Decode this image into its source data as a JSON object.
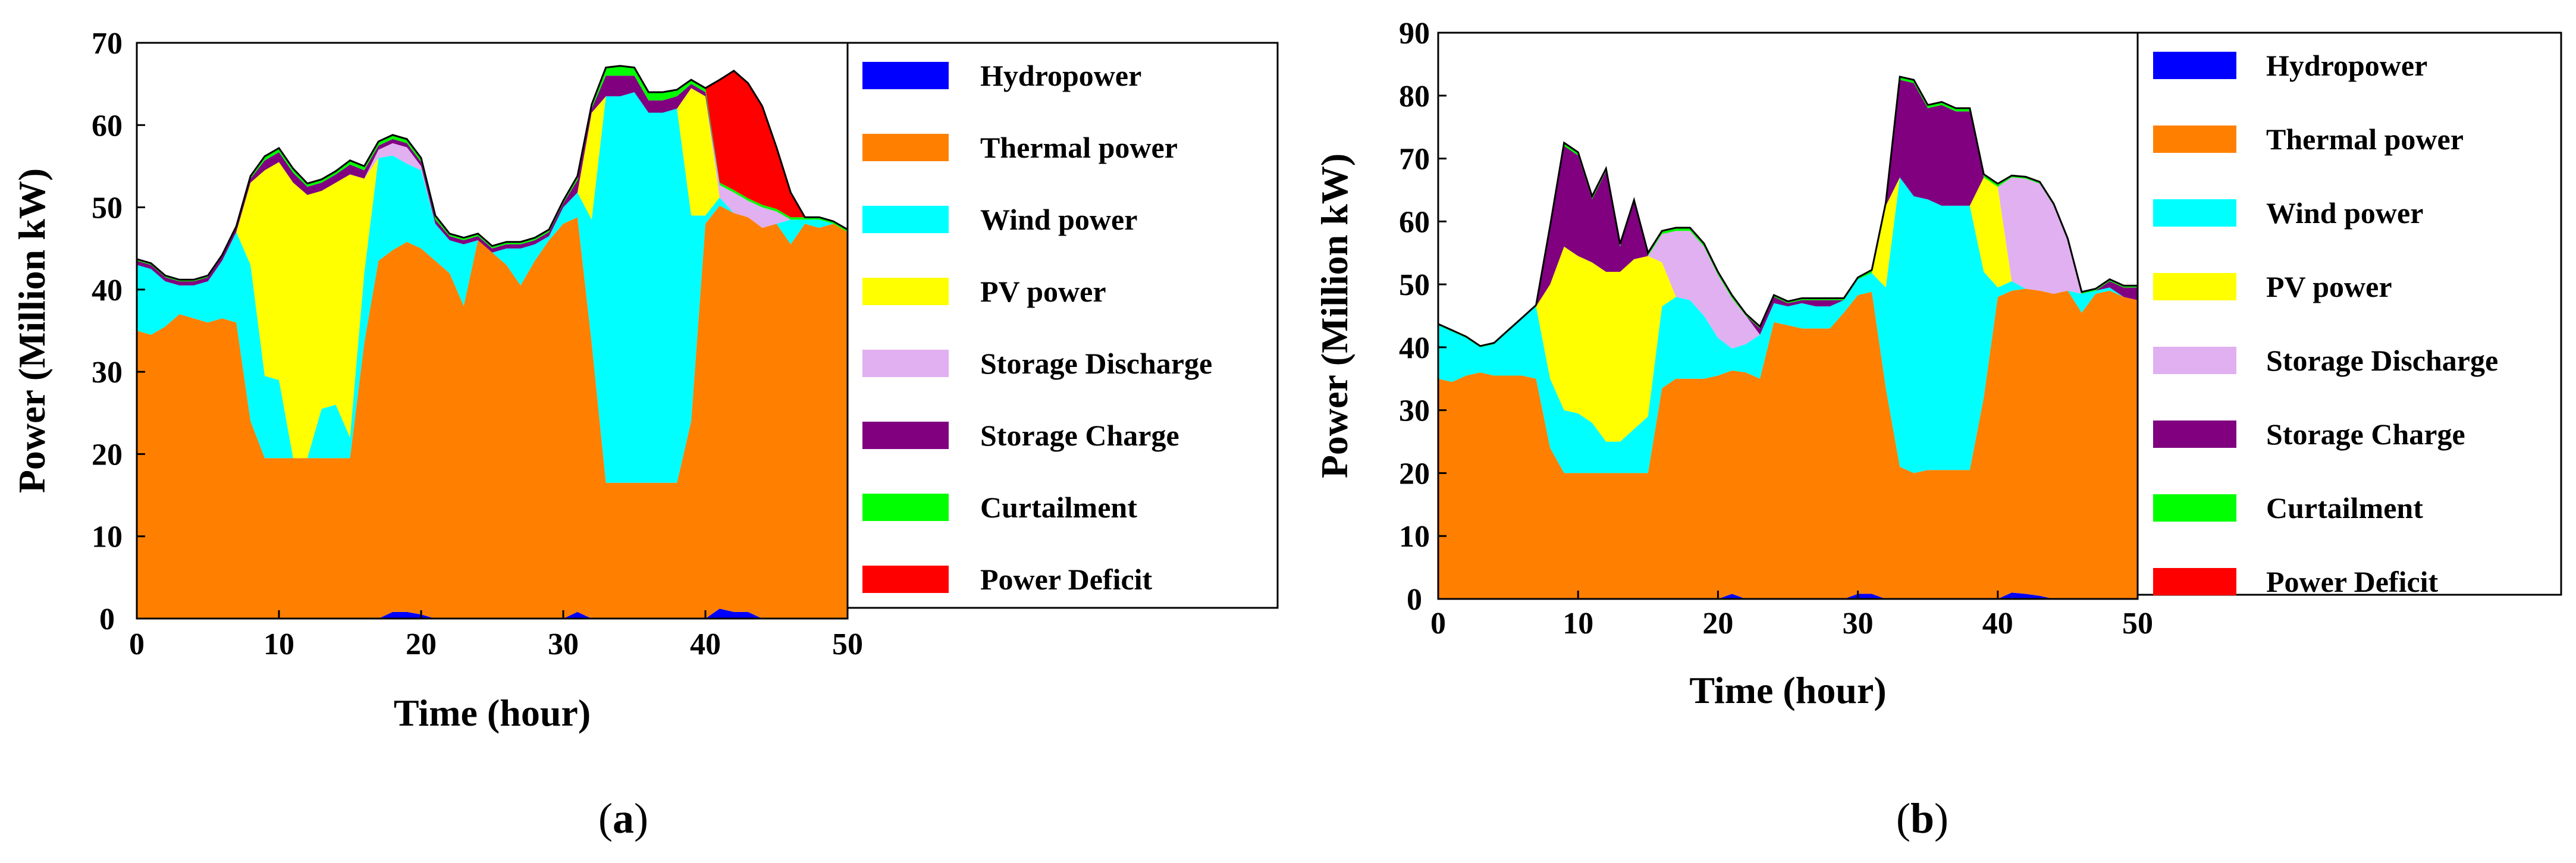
{
  "colors": {
    "Hydropower": "#0000FF",
    "Thermal power": "#FF8000",
    "Wind power": "#00FFFF",
    "PV power": "#FFFF00",
    "Storage Discharge": "#E0B0F0",
    "Storage Charge": "#800080",
    "Curtailment": "#00FF00",
    "Power Deficit": "#FF0000"
  },
  "chart_data": [
    {
      "panel_label": "(a)",
      "type": "area",
      "xlabel": "Time (hour)",
      "ylabel": "Power (Million kW)",
      "xlim": [
        0,
        50
      ],
      "ylim": [
        0,
        70
      ],
      "xticks": [
        0,
        10,
        20,
        30,
        40,
        50
      ],
      "yticks": [
        0,
        10,
        20,
        30,
        40,
        50,
        60,
        70
      ],
      "legend": [
        "Hydropower",
        "Thermal power",
        "Wind power",
        "PV power",
        "Storage Discharge",
        "Storage Charge",
        "Curtailment",
        "Power Deficit"
      ],
      "x": [
        0,
        1,
        2,
        3,
        4,
        5,
        6,
        7,
        8,
        9,
        10,
        11,
        12,
        13,
        14,
        15,
        16,
        17,
        18,
        19,
        20,
        21,
        22,
        23,
        24,
        25,
        26,
        27,
        28,
        29,
        30,
        31,
        32,
        33,
        34,
        35,
        36,
        37,
        38,
        39,
        40,
        41,
        42,
        43,
        44,
        45,
        46,
        47,
        48,
        49,
        50
      ],
      "series": [
        {
          "name": "Hydropower",
          "values": [
            0,
            0,
            0,
            0,
            0,
            0,
            0,
            0,
            0,
            0,
            0,
            0,
            0,
            0,
            0,
            0,
            0,
            0,
            0.8,
            0.8,
            0.5,
            0,
            0,
            0,
            0,
            0,
            0,
            0,
            0,
            0,
            0,
            0.8,
            0,
            0,
            0,
            0,
            0,
            0,
            0,
            0,
            0,
            1.2,
            0.8,
            0.8,
            0,
            0,
            0,
            0,
            0,
            0,
            0
          ]
        },
        {
          "name": "Thermal power",
          "values": [
            35,
            34.5,
            35.5,
            37,
            36.5,
            36,
            36.5,
            36,
            24,
            19.5,
            19.5,
            19.5,
            19.5,
            19.5,
            19.5,
            19.5,
            33.5,
            43.5,
            44,
            45,
            44.5,
            43.5,
            42,
            38,
            46,
            44.5,
            43,
            40.5,
            43.5,
            46,
            48,
            48,
            33.5,
            16.5,
            16.5,
            16.5,
            16.5,
            16.5,
            16.5,
            24,
            48,
            49,
            48.5,
            48,
            47.5,
            48,
            45.5,
            48,
            47.5,
            48,
            47
          ]
        },
        {
          "name": "Wind power",
          "values": [
            8,
            8,
            5.5,
            3.5,
            4,
            5,
            7,
            11,
            19,
            10,
            9.5,
            0,
            0,
            6,
            6.5,
            2.5,
            8.5,
            12.5,
            11.5,
            9.5,
            9.5,
            4.5,
            4,
            7.5,
            0,
            0,
            2,
            4.5,
            2,
            0.5,
            2,
            3,
            15,
            47,
            47,
            47.5,
            45,
            45,
            45.5,
            25,
            1,
            1,
            0,
            0,
            0,
            0,
            3,
            0.5,
            1,
            0,
            0
          ]
        },
        {
          "name": "PV power",
          "values": [
            0,
            0,
            0,
            0,
            0,
            0,
            0,
            0,
            10,
            25,
            26.5,
            33.5,
            32,
            26.5,
            27,
            32,
            11.5,
            0,
            0,
            0,
            0,
            0,
            0,
            0,
            0,
            0,
            0,
            0,
            0,
            0,
            0,
            0,
            13,
            0,
            0,
            0,
            0,
            0,
            0,
            15.5,
            14.5,
            0,
            0,
            0,
            0,
            0,
            0,
            0,
            0,
            0,
            0
          ]
        },
        {
          "name": "Storage Discharge",
          "values": [
            0,
            0,
            0,
            0,
            0,
            0,
            0,
            0,
            0,
            0,
            0,
            0,
            0,
            0,
            0,
            0,
            0,
            1,
            1.5,
            2,
            0.5,
            0,
            0,
            0,
            0,
            0,
            0,
            0,
            0,
            0,
            0,
            0,
            0,
            0,
            0,
            0,
            0,
            0,
            0,
            0,
            0,
            1.5,
            2.5,
            2,
            2.5,
            1.5,
            0,
            0,
            0,
            0,
            0
          ]
        },
        {
          "name": "Storage Charge",
          "values": [
            0.5,
            0.5,
            0.5,
            0.5,
            0.5,
            0.5,
            0.5,
            0.5,
            0.5,
            1.2,
            1.2,
            1.2,
            1,
            1,
            1,
            1.2,
            1,
            0.5,
            0.5,
            0.5,
            0.5,
            0.5,
            0.5,
            0.5,
            0.5,
            0.5,
            0.5,
            0.5,
            0.5,
            0.5,
            0.5,
            1.5,
            0.5,
            2.5,
            2.5,
            2,
            1.5,
            1.5,
            1.5,
            0.5,
            0.5,
            0,
            0,
            0,
            0,
            0,
            0,
            0,
            0,
            0,
            0
          ]
        },
        {
          "name": "Curtailment",
          "values": [
            0.2,
            0.2,
            0.2,
            0.2,
            0.2,
            0.2,
            0.2,
            0.2,
            0.3,
            0.5,
            0.5,
            0.5,
            0.4,
            0.4,
            0.4,
            0.5,
            0.5,
            0.5,
            0.5,
            0.5,
            0.5,
            0.5,
            0.3,
            0.3,
            0.3,
            0.3,
            0.3,
            0.3,
            0.3,
            0.3,
            0.3,
            0.5,
            0.5,
            1,
            1.2,
            1,
            1,
            1,
            0.8,
            0.5,
            0.5,
            0.3,
            0.3,
            0.3,
            0.3,
            0.3,
            0.3,
            0.3,
            0.3,
            0.3,
            0.3
          ]
        },
        {
          "name": "Power Deficit",
          "values": [
            0,
            0,
            0,
            0,
            0,
            0,
            0,
            0,
            0,
            0,
            0,
            0,
            0,
            0,
            0,
            0,
            0,
            0,
            0,
            0,
            0,
            0,
            0,
            0,
            0,
            0,
            0,
            0,
            0,
            0,
            0,
            0,
            0,
            0,
            0,
            0,
            0,
            0,
            0,
            0,
            0,
            12.5,
            14.5,
            14,
            12,
            7.5,
            3,
            0,
            0,
            0,
            0
          ]
        }
      ]
    },
    {
      "panel_label": "(b)",
      "type": "area",
      "xlabel": "Time (hour)",
      "ylabel": "Power (Million kW)",
      "xlim": [
        0,
        50
      ],
      "ylim": [
        0,
        90
      ],
      "xticks": [
        0,
        10,
        20,
        30,
        40,
        50
      ],
      "yticks": [
        0,
        10,
        20,
        30,
        40,
        50,
        60,
        70,
        80,
        90
      ],
      "legend": [
        "Hydropower",
        "Thermal power",
        "Wind power",
        "PV power",
        "Storage Discharge",
        "Storage Charge",
        "Curtailment",
        "Power Deficit"
      ],
      "x": [
        0,
        1,
        2,
        3,
        4,
        5,
        6,
        7,
        8,
        9,
        10,
        11,
        12,
        13,
        14,
        15,
        16,
        17,
        18,
        19,
        20,
        21,
        22,
        23,
        24,
        25,
        26,
        27,
        28,
        29,
        30,
        31,
        32,
        33,
        34,
        35,
        36,
        37,
        38,
        39,
        40,
        41,
        42,
        43,
        44,
        45,
        46,
        47,
        48,
        49,
        50
      ],
      "series": [
        {
          "name": "Hydropower",
          "values": [
            0,
            0,
            0,
            0,
            0,
            0,
            0,
            0,
            0,
            0,
            0,
            0,
            0,
            0,
            0,
            0,
            0,
            0,
            0,
            0,
            0,
            0.8,
            0,
            0,
            0,
            0,
            0,
            0,
            0,
            0,
            0.8,
            0.8,
            0,
            0,
            0,
            0,
            0,
            0,
            0,
            0,
            0,
            1,
            0.8,
            0.5,
            0,
            0,
            0,
            0,
            0,
            0,
            0
          ]
        },
        {
          "name": "Thermal power",
          "values": [
            35,
            34.5,
            35.5,
            36,
            35.5,
            35.5,
            35.5,
            35,
            24,
            20,
            20,
            20,
            20,
            20,
            20,
            20,
            33.5,
            35,
            35,
            35,
            35.5,
            35.5,
            36,
            35,
            44,
            43.5,
            43,
            43,
            43,
            45.5,
            47.5,
            48,
            33.5,
            21,
            20,
            20.5,
            20.5,
            20.5,
            20.5,
            32,
            48,
            48,
            48.5,
            48.5,
            48.5,
            49,
            45.5,
            48.5,
            49,
            48,
            47.5
          ]
        },
        {
          "name": "Wind power",
          "values": [
            8.5,
            8,
            6,
            4,
            5,
            7,
            9,
            11.5,
            11,
            10,
            9.5,
            8,
            5,
            5,
            7,
            9,
            13,
            13,
            12.5,
            10,
            6,
            3.5,
            4.5,
            7,
            3,
            3,
            4,
            3.5,
            3.5,
            2,
            2.5,
            3,
            16,
            46,
            44,
            43,
            42,
            42,
            42,
            20,
            1.5,
            1.5,
            0,
            0,
            0,
            0,
            3,
            0.5,
            0.5,
            0,
            0
          ]
        },
        {
          "name": "PV power",
          "values": [
            0,
            0,
            0,
            0,
            0,
            0,
            0,
            0,
            15,
            26,
            25,
            25.5,
            27,
            27,
            27,
            25.5,
            7,
            0,
            0,
            0,
            0,
            0,
            0,
            0,
            0,
            0,
            0,
            0,
            0,
            0,
            0,
            0,
            13,
            0,
            0,
            0,
            0,
            0,
            0,
            15,
            16,
            0,
            0,
            0,
            0,
            0,
            0,
            0,
            0,
            0,
            0
          ]
        },
        {
          "name": "Storage Discharge",
          "values": [
            0,
            0,
            0,
            0,
            0,
            0,
            0,
            0,
            0,
            0,
            0,
            0,
            0,
            0,
            0,
            0,
            4.5,
            10.5,
            11,
            11,
            10,
            8,
            4.5,
            0,
            0,
            0,
            0,
            0,
            0,
            0,
            0,
            0,
            0,
            0,
            0,
            0,
            0,
            0,
            0,
            0,
            0,
            16.5,
            17.5,
            17,
            14,
            8,
            0,
            0,
            0,
            0,
            0
          ]
        },
        {
          "name": "Storage Charge",
          "values": [
            0,
            0,
            0,
            0,
            0,
            0,
            0,
            0,
            9,
            16,
            16,
            10,
            16,
            4,
            9,
            0,
            0,
            0,
            0,
            0,
            0,
            0,
            0,
            1,
            1,
            0.5,
            0.5,
            1,
            1,
            0,
            0,
            0,
            0,
            15.5,
            18,
            14.5,
            16,
            15,
            15,
            0,
            0,
            0,
            0,
            0,
            0,
            0,
            0,
            0,
            1,
            1.5,
            2
          ]
        },
        {
          "name": "Curtailment",
          "values": [
            0.2,
            0.2,
            0.2,
            0.2,
            0.2,
            0.2,
            0.2,
            0.2,
            0.3,
            0.5,
            0.5,
            0.5,
            0.4,
            0.4,
            0.4,
            0.5,
            0.5,
            0.5,
            0.5,
            0.5,
            0.5,
            0.5,
            0.3,
            0.3,
            0.3,
            0.3,
            0.3,
            0.3,
            0.3,
            0.3,
            0.3,
            0.5,
            0.5,
            0.5,
            0.5,
            0.5,
            0.5,
            0.5,
            0.5,
            0.5,
            0.5,
            0.3,
            0.3,
            0.3,
            0.3,
            0.3,
            0.3,
            0.3,
            0.3,
            0.3,
            0.3
          ]
        },
        {
          "name": "Power Deficit",
          "values": [
            0,
            0,
            0,
            0,
            0,
            0,
            0,
            0,
            0,
            0,
            0,
            0,
            0,
            0,
            0,
            0,
            0,
            0,
            0,
            0,
            0,
            0,
            0,
            0,
            0,
            0,
            0,
            0,
            0,
            0,
            0,
            0,
            0,
            0,
            0,
            0,
            0,
            0,
            0,
            0,
            0,
            0,
            0,
            0,
            0,
            0,
            0,
            0,
            0,
            0,
            0
          ]
        }
      ]
    }
  ]
}
